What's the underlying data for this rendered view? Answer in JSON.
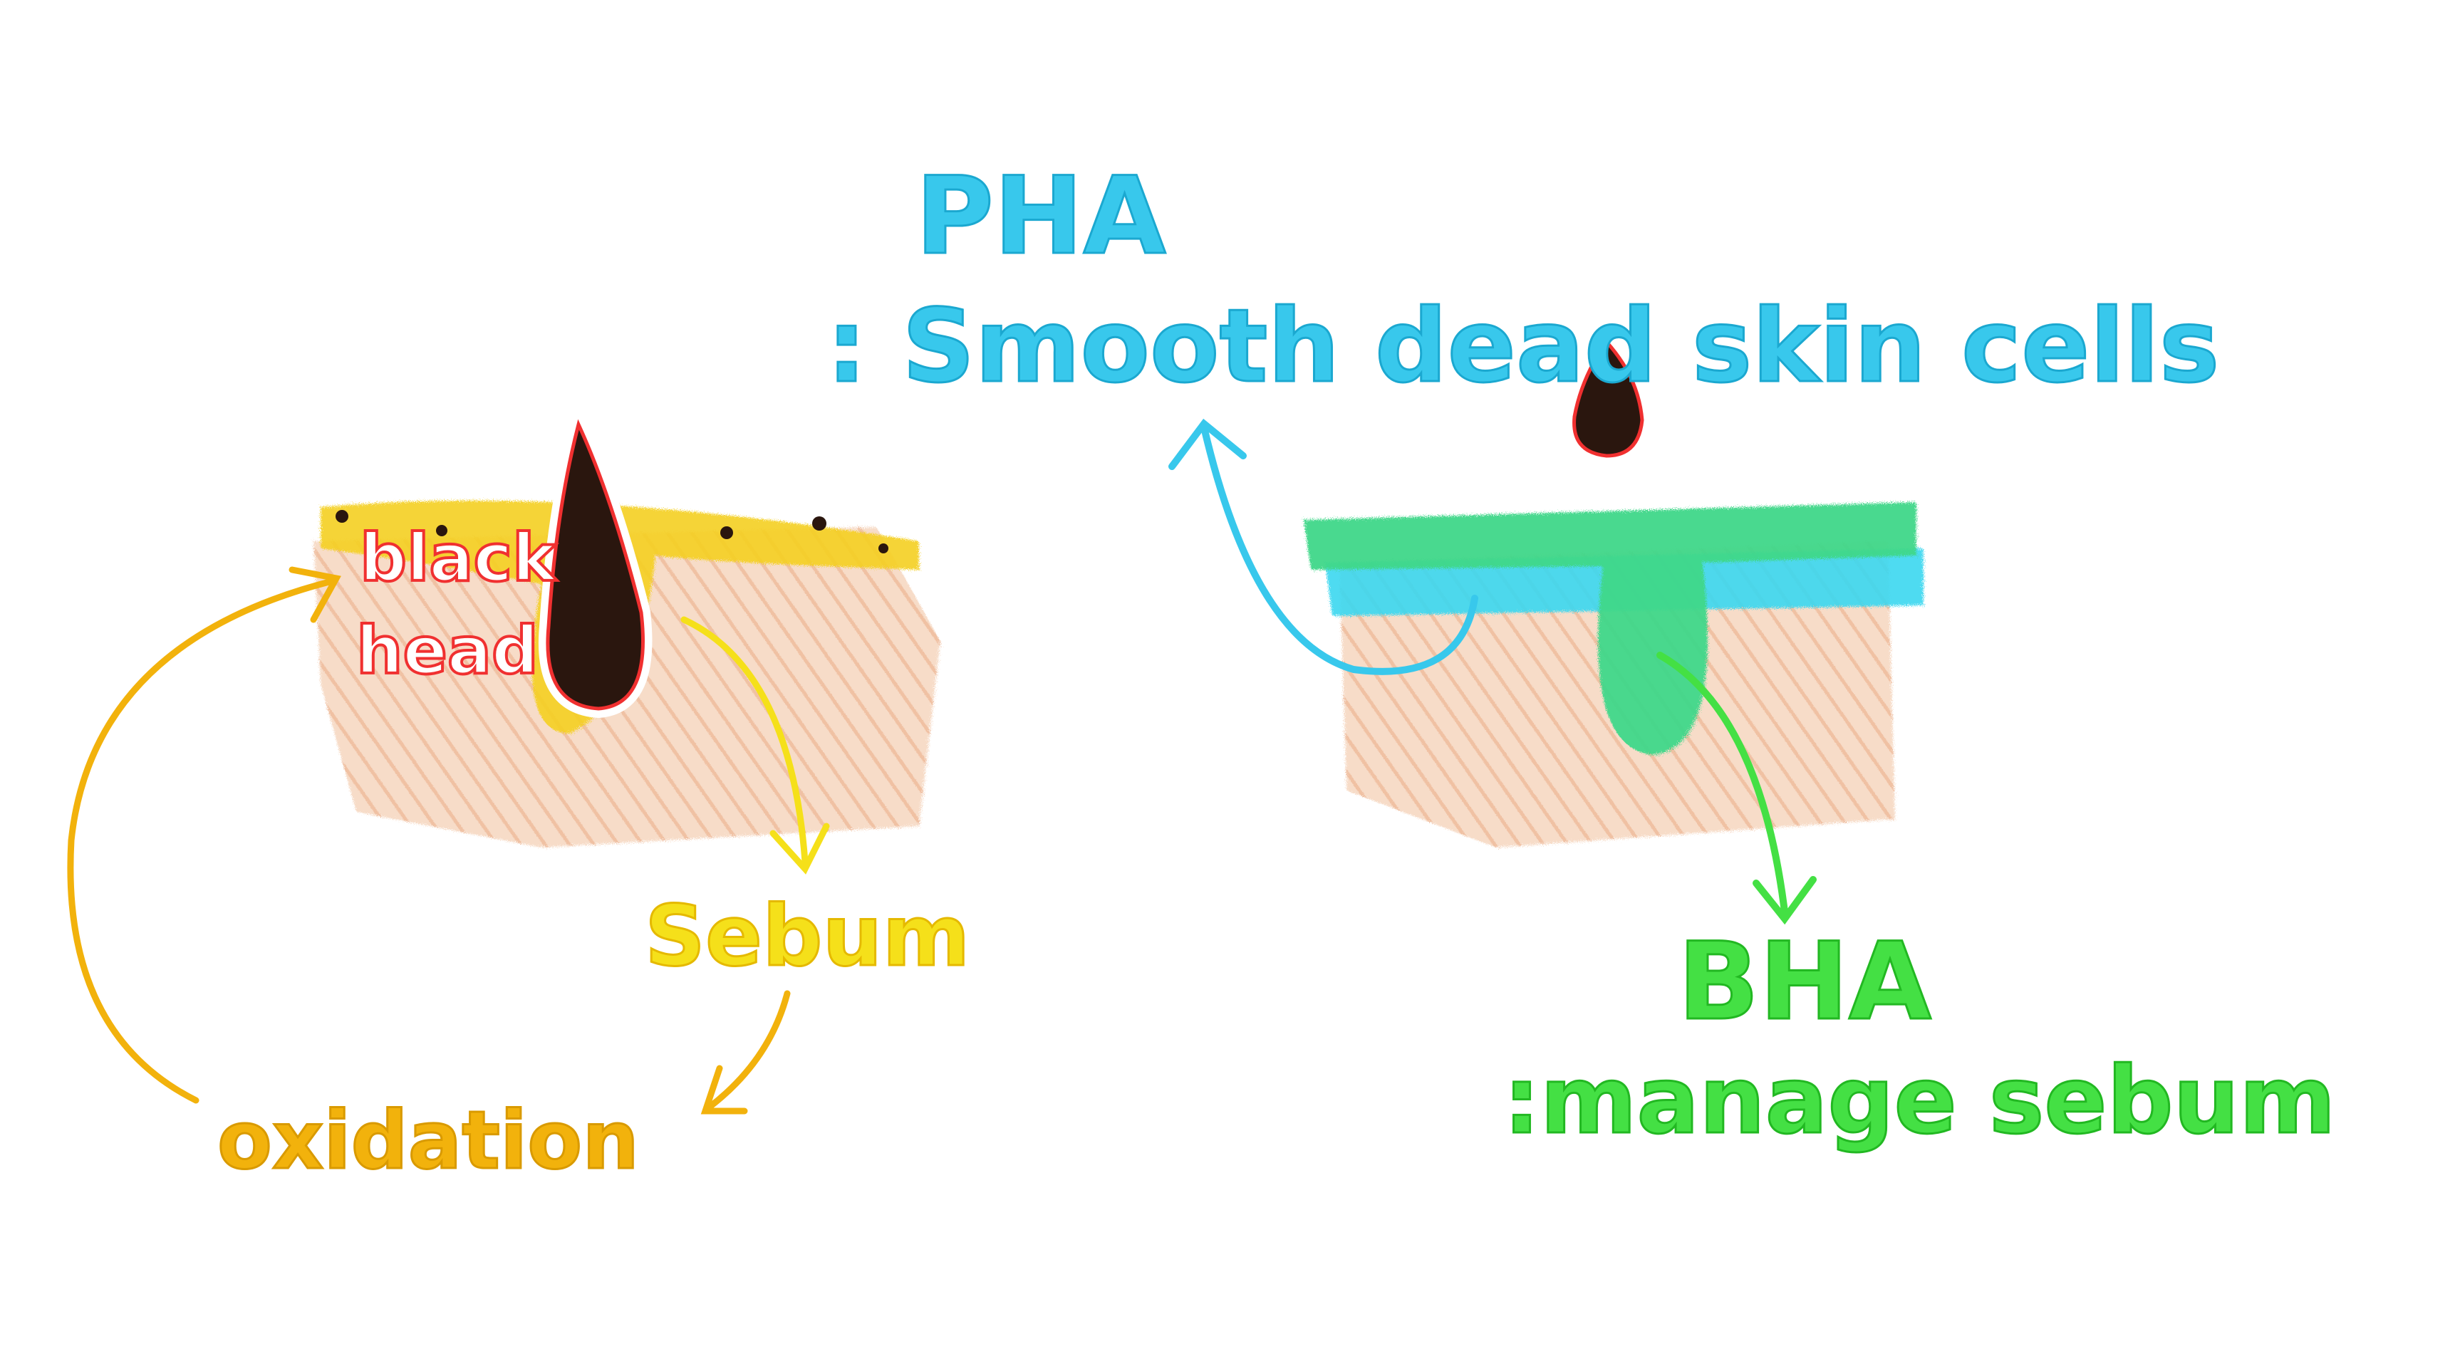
{
  "pha": {
    "title": "PHA",
    "desc": ": Smooth dead skin cells",
    "color": "#38c8ec"
  },
  "bha": {
    "title": "BHA",
    "desc": ":manage sebum",
    "color": "#44e044"
  },
  "cycle": {
    "blackhead_line1": "black",
    "blackhead_line2": "head",
    "sebum": "Sebum",
    "oxidation": "oxidation"
  },
  "colors": {
    "skin": "#f2c4a4",
    "sebum_yellow": "#f5d020",
    "oxidation_orange": "#f2b20c",
    "blackhead_red": "#f03030",
    "blackhead_fill": "#2a160e",
    "bha_green": "#3fd88a",
    "pha_cyan": "#3ad8f0"
  }
}
